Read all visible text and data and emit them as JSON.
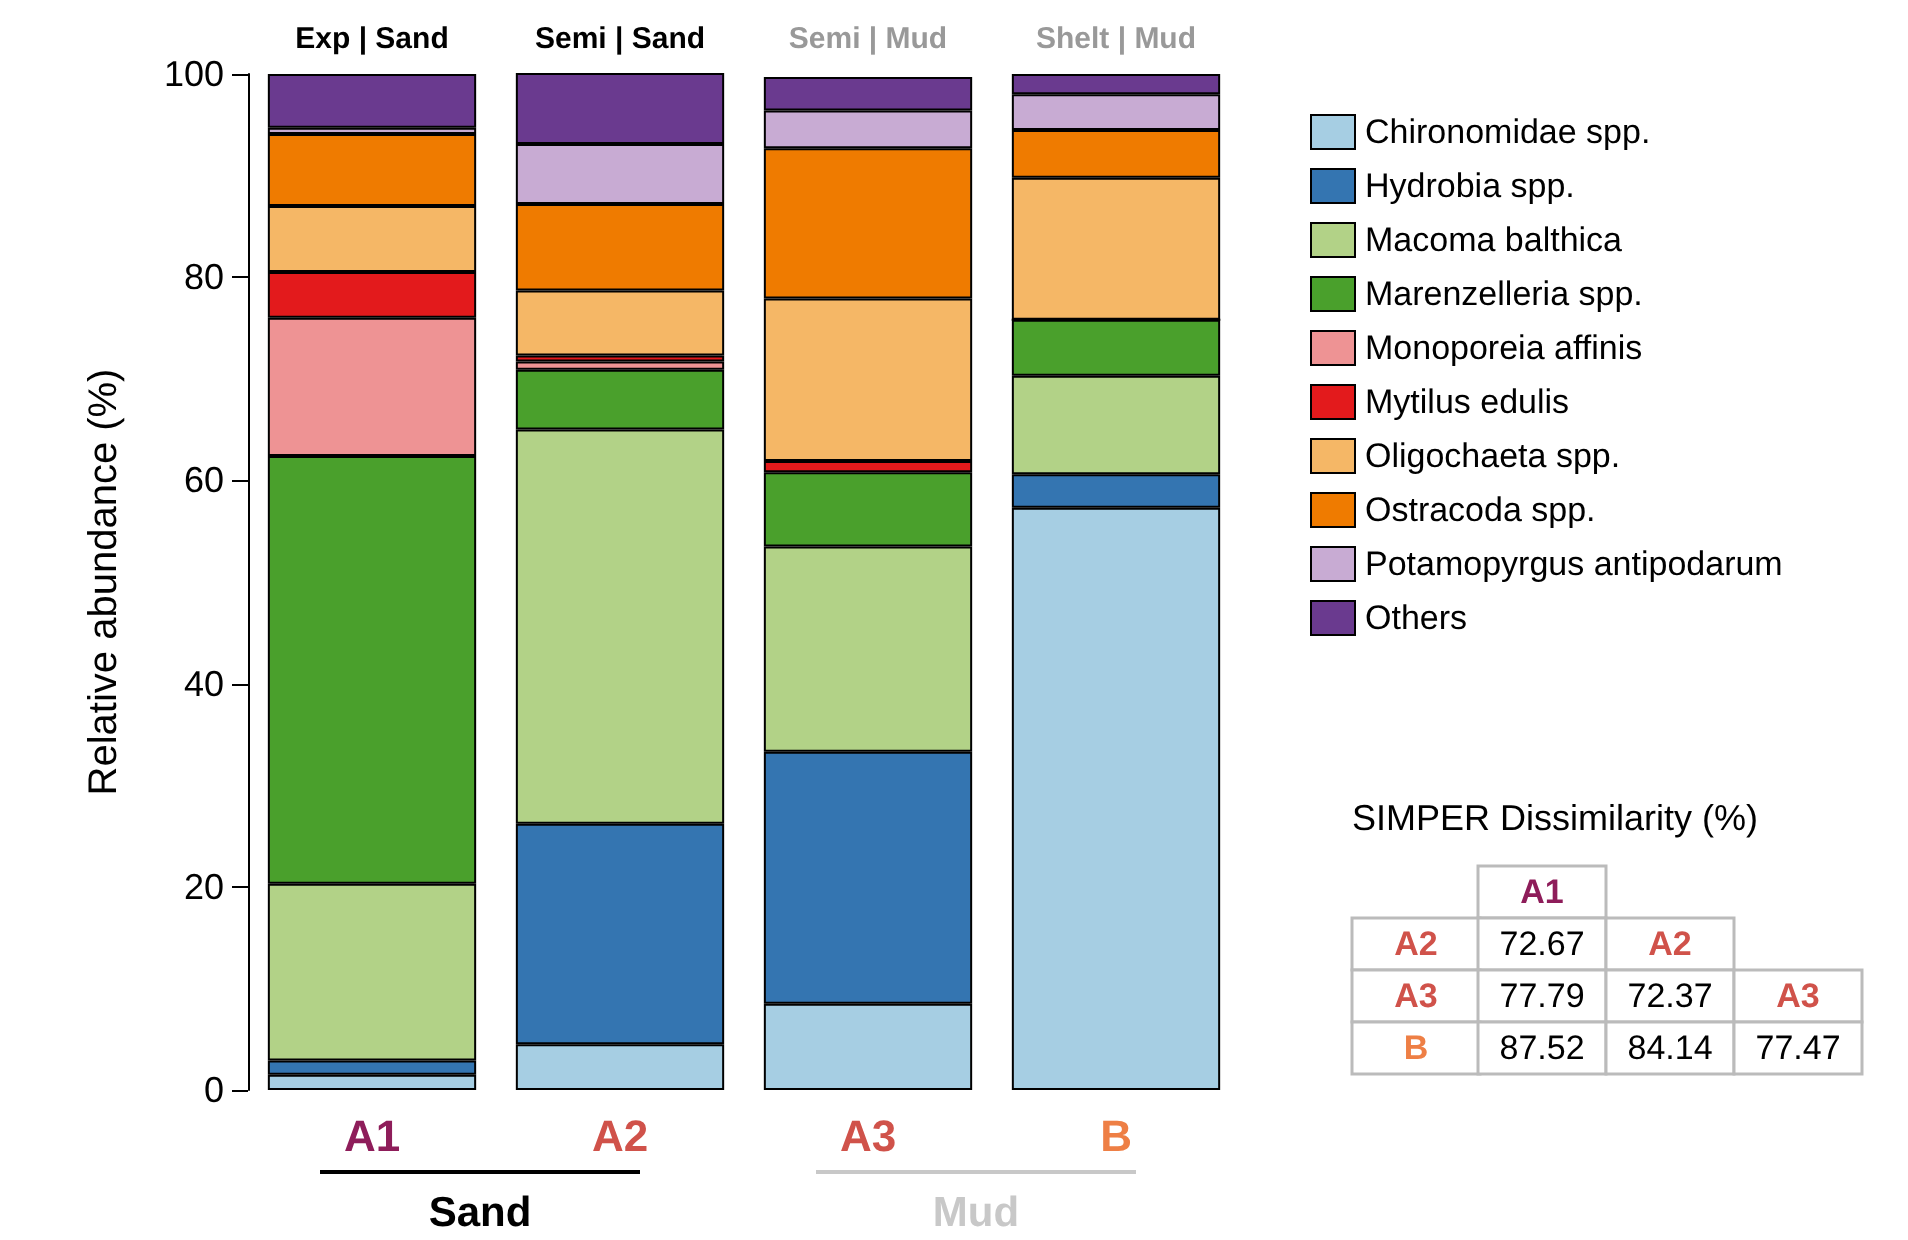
{
  "chart_data": {
    "type": "bar",
    "stacked": true,
    "ylabel": "Relative abundance (%)",
    "categories": [
      "A1",
      "A2",
      "A3",
      "B"
    ],
    "ylim": [
      0,
      100
    ],
    "yticks": [
      0,
      20,
      40,
      60,
      80,
      100
    ],
    "grid": false,
    "legend": "right",
    "series": [
      {
        "name": "Chironomidae spp.",
        "color": "#a6cee3",
        "values": [
          1.5,
          4.5,
          8.5,
          57.3
        ]
      },
      {
        "name": "Hydrobia spp.",
        "color": "#3475b1",
        "values": [
          1.4,
          21.7,
          24.8,
          3.3
        ]
      },
      {
        "name": "Macoma balthica",
        "color": "#b2d287",
        "values": [
          17.4,
          38.8,
          20.2,
          9.7
        ]
      },
      {
        "name": "Marenzelleria spp.",
        "color": "#4aa02c",
        "values": [
          42.1,
          5.9,
          7.3,
          5.5
        ]
      },
      {
        "name": "Monoporeia affinis",
        "color": "#ee9394",
        "values": [
          13.6,
          0.8,
          null,
          0
        ]
      },
      {
        "name": "Mytilus edulis",
        "color": "#e31a1c",
        "values": [
          4.5,
          0.6,
          1.1,
          0
        ]
      },
      {
        "name": "Oligochaeta spp.",
        "color": "#f5b766",
        "values": [
          6.5,
          6.4,
          16,
          14
        ]
      },
      {
        "name": "Ostracoda spp.",
        "color": "#ef7b00",
        "values": [
          7.1,
          8.5,
          14.8,
          4.7
        ]
      },
      {
        "name": "Potamopyrgus antipodarum",
        "color": "#c8abd3",
        "values": [
          0.6,
          5.9,
          3.7,
          3.5
        ]
      },
      {
        "name": "Others",
        "color": "#6a3a8f",
        "values": [
          5.3,
          7.1,
          3.3,
          2
        ]
      }
    ],
    "annotations": [
      "Exp | Sand",
      "Semi | Sand",
      "Semi | Mud",
      "Shelt | Mud",
      "Sand",
      "Mud",
      "SIMPER Dissimilarity (%)",
      "A1",
      "A2",
      "72.67",
      "A2",
      "A3",
      "77.79",
      "72.37",
      "A3",
      "B",
      "87.52",
      "84.14",
      "77.47"
    ]
  }
}
